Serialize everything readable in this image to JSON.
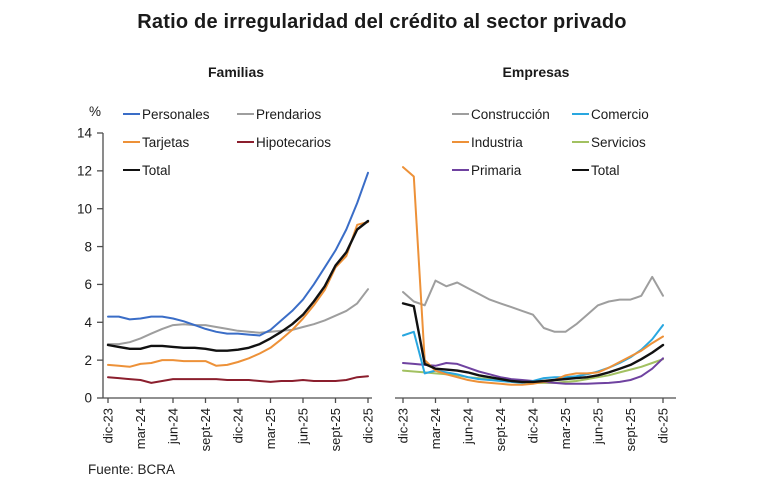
{
  "title": "Ratio de irregularidad del crédito al sector privado",
  "source_note": "Fuente: BCRA",
  "y_axis": {
    "unit_label": "%",
    "max": 14,
    "ticks": [
      0,
      2,
      4,
      6,
      8,
      10,
      12,
      14
    ]
  },
  "x_frequency_note": "monthly points, quarterly tick labels",
  "chart_data": [
    {
      "type": "line",
      "title": "Familias",
      "ylim": [
        0,
        14
      ],
      "x_labels": [
        "dic-23",
        "mar-24",
        "jun-24",
        "sept-24",
        "dic-24",
        "mar-25",
        "jun-25",
        "sept-25",
        "dic-25"
      ],
      "months_per_tick": 3,
      "legend_columns": [
        [
          "Personales",
          "Tarjetas",
          "Total"
        ],
        [
          "Prendarios",
          "Hipotecarios"
        ]
      ],
      "series": [
        {
          "name": "Prendarios",
          "color": "#9E9E9E",
          "values": [
            2.85,
            2.85,
            2.95,
            3.15,
            3.4,
            3.65,
            3.85,
            3.9,
            3.85,
            3.85,
            3.75,
            3.65,
            3.55,
            3.5,
            3.45,
            3.5,
            3.55,
            3.6,
            3.75,
            3.9,
            4.1,
            4.35,
            4.6,
            5.0,
            5.75
          ]
        },
        {
          "name": "Hipotecarios",
          "color": "#8B1E2D",
          "values": [
            1.1,
            1.05,
            1.0,
            0.95,
            0.8,
            0.9,
            1.0,
            1.0,
            1.0,
            1.0,
            1.0,
            0.95,
            0.95,
            0.95,
            0.9,
            0.85,
            0.9,
            0.9,
            0.95,
            0.9,
            0.9,
            0.9,
            0.95,
            1.1,
            1.15
          ]
        },
        {
          "name": "Tarjetas",
          "color": "#ED9138",
          "values": [
            1.75,
            1.7,
            1.65,
            1.8,
            1.85,
            2.0,
            2.0,
            1.95,
            1.95,
            1.95,
            1.7,
            1.75,
            1.9,
            2.1,
            2.35,
            2.65,
            3.1,
            3.6,
            4.2,
            4.9,
            5.7,
            6.9,
            7.5,
            9.15,
            9.3
          ]
        },
        {
          "name": "Total",
          "color": "#111111",
          "values": [
            2.8,
            2.7,
            2.6,
            2.6,
            2.75,
            2.75,
            2.7,
            2.65,
            2.65,
            2.6,
            2.5,
            2.5,
            2.55,
            2.65,
            2.85,
            3.15,
            3.5,
            3.9,
            4.4,
            5.1,
            5.9,
            7.0,
            7.7,
            8.9,
            9.35
          ]
        },
        {
          "name": "Personales",
          "color": "#3A6DC7",
          "values": [
            4.3,
            4.3,
            4.15,
            4.2,
            4.3,
            4.3,
            4.2,
            4.05,
            3.85,
            3.65,
            3.5,
            3.4,
            3.4,
            3.35,
            3.3,
            3.6,
            4.1,
            4.6,
            5.2,
            6.0,
            6.9,
            7.8,
            8.9,
            10.3,
            11.9
          ]
        }
      ]
    },
    {
      "type": "line",
      "title": "Empresas",
      "ylim": [
        0,
        14
      ],
      "x_labels": [
        "dic-23",
        "mar-24",
        "jun-24",
        "sept-24",
        "dic-24",
        "mar-25",
        "jun-25",
        "sept-25",
        "dic-25"
      ],
      "months_per_tick": 3,
      "legend_columns": [
        [
          "Construcción",
          "Industria",
          "Primaria"
        ],
        [
          "Comercio",
          "Servicios",
          "Total"
        ]
      ],
      "series": [
        {
          "name": "Construcción",
          "color": "#9E9E9E",
          "values": [
            5.6,
            5.1,
            4.9,
            6.2,
            5.9,
            6.1,
            5.8,
            5.5,
            5.2,
            5.0,
            4.8,
            4.6,
            4.4,
            3.7,
            3.5,
            3.5,
            3.9,
            4.4,
            4.9,
            5.1,
            5.2,
            5.2,
            5.4,
            6.4,
            5.4
          ]
        },
        {
          "name": "Servicios",
          "color": "#A2C161",
          "values": [
            1.45,
            1.4,
            1.35,
            1.3,
            1.25,
            1.2,
            1.1,
            1.05,
            1.0,
            0.95,
            0.9,
            0.85,
            0.8,
            0.8,
            0.8,
            0.85,
            0.9,
            1.0,
            1.1,
            1.2,
            1.35,
            1.5,
            1.65,
            1.85,
            2.05
          ]
        },
        {
          "name": "Primaria",
          "color": "#6F42A0",
          "values": [
            1.85,
            1.8,
            1.75,
            1.7,
            1.85,
            1.8,
            1.6,
            1.4,
            1.25,
            1.1,
            1.0,
            0.95,
            0.9,
            0.85,
            0.8,
            0.75,
            0.75,
            0.75,
            0.78,
            0.8,
            0.85,
            0.95,
            1.15,
            1.55,
            2.1
          ]
        },
        {
          "name": "Comercio",
          "color": "#29A7E0",
          "values": [
            3.3,
            3.5,
            1.3,
            1.45,
            1.35,
            1.25,
            1.1,
            1.0,
            0.95,
            0.9,
            0.85,
            0.8,
            0.9,
            1.05,
            1.1,
            1.1,
            1.15,
            1.25,
            1.4,
            1.6,
            1.85,
            2.15,
            2.55,
            3.1,
            3.85
          ]
        },
        {
          "name": "Industria",
          "color": "#ED9138",
          "values": [
            12.2,
            11.7,
            2.0,
            1.45,
            1.25,
            1.1,
            0.95,
            0.85,
            0.8,
            0.75,
            0.7,
            0.7,
            0.75,
            0.85,
            0.95,
            1.2,
            1.3,
            1.3,
            1.35,
            1.6,
            1.9,
            2.2,
            2.5,
            2.9,
            3.25
          ]
        },
        {
          "name": "Total",
          "color": "#111111",
          "values": [
            5.0,
            4.85,
            1.8,
            1.55,
            1.5,
            1.45,
            1.35,
            1.2,
            1.1,
            1.0,
            0.9,
            0.85,
            0.85,
            0.9,
            0.95,
            1.0,
            1.05,
            1.1,
            1.2,
            1.35,
            1.55,
            1.75,
            2.05,
            2.4,
            2.8
          ]
        }
      ]
    }
  ]
}
